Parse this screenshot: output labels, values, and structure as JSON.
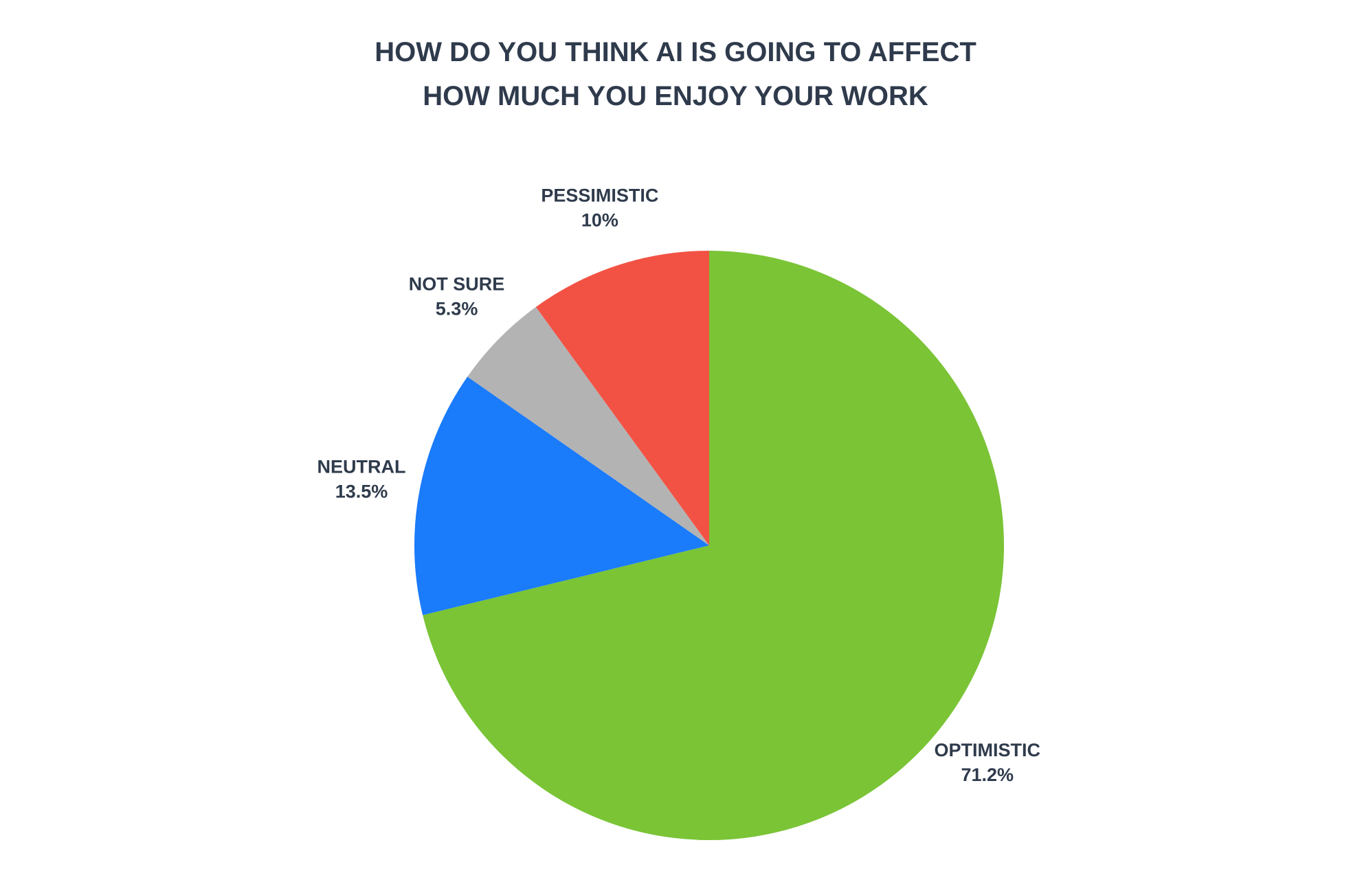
{
  "chart_data": {
    "type": "pie",
    "title": "HOW DO YOU THINK AI IS GOING TO AFFECT HOW MUCH YOU ENJOY YOUR WORK",
    "categories": [
      "OPTIMISTIC",
      "NEUTRAL",
      "NOT SURE",
      "PESSIMISTIC"
    ],
    "values": [
      71.2,
      13.5,
      5.3,
      10
    ],
    "value_labels": [
      "71.2%",
      "13.5%",
      "5.3%",
      "10%"
    ],
    "colors": [
      "#7ac436",
      "#1a7bfb",
      "#b3b3b3",
      "#f25244"
    ]
  }
}
